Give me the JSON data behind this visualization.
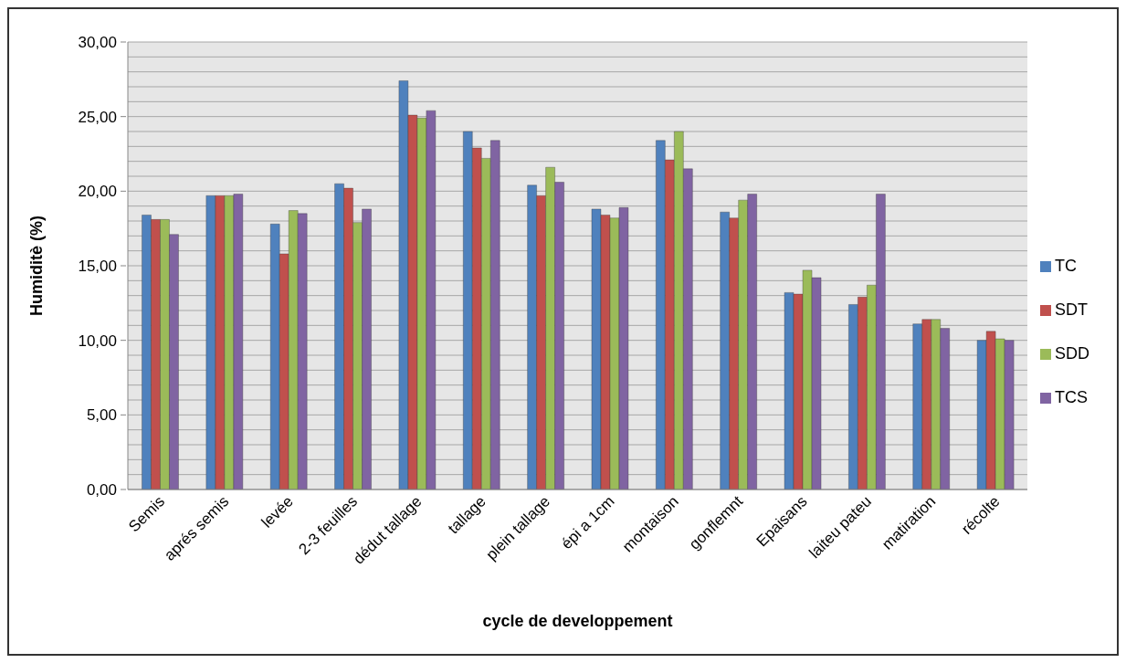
{
  "chart_data": {
    "type": "bar",
    "xlabel": "cycle de developpement",
    "ylabel": "Humiditè (%)",
    "categories": [
      "Semis",
      "aprés semis",
      "levée",
      "2-3 feuilles",
      "dédut tallage",
      "tallage",
      "plein tallage",
      "épi a 1cm",
      "montaison",
      "gonflemnt",
      "Epaisans",
      "laiteu pateu",
      "matiration",
      "récolte"
    ],
    "series": [
      {
        "name": "TC",
        "color": "#4f81bd",
        "values": [
          18.4,
          19.7,
          17.8,
          20.5,
          27.4,
          24.0,
          20.4,
          18.8,
          23.4,
          18.6,
          13.2,
          12.4,
          11.1,
          10.0
        ]
      },
      {
        "name": "SDT",
        "color": "#c0504d",
        "values": [
          18.1,
          19.7,
          15.8,
          20.2,
          25.1,
          22.9,
          19.7,
          18.4,
          22.1,
          18.2,
          13.1,
          12.9,
          11.4,
          10.6
        ]
      },
      {
        "name": "SDD",
        "color": "#9bbb59",
        "values": [
          18.1,
          19.7,
          18.7,
          17.9,
          24.9,
          22.2,
          21.6,
          18.2,
          24.0,
          19.4,
          14.7,
          13.7,
          11.4,
          10.1
        ]
      },
      {
        "name": "TCS",
        "color": "#8064a2",
        "values": [
          17.1,
          19.8,
          18.5,
          18.8,
          25.4,
          23.4,
          20.6,
          18.9,
          21.5,
          19.8,
          14.2,
          19.8,
          10.8,
          10.0
        ]
      }
    ],
    "ylim": [
      0,
      30
    ],
    "yticks": [
      {
        "value": 0,
        "label": "0,00"
      },
      {
        "value": 1,
        "label": null
      },
      {
        "value": 2,
        "label": null
      },
      {
        "value": 3,
        "label": null
      },
      {
        "value": 4,
        "label": null
      },
      {
        "value": 5,
        "label": "5,00"
      },
      {
        "value": 6,
        "label": null
      },
      {
        "value": 7,
        "label": null
      },
      {
        "value": 8,
        "label": null
      },
      {
        "value": 9,
        "label": null
      },
      {
        "value": 10,
        "label": "10,00"
      },
      {
        "value": 11,
        "label": null
      },
      {
        "value": 12,
        "label": null
      },
      {
        "value": 13,
        "label": null
      },
      {
        "value": 14,
        "label": null
      },
      {
        "value": 15,
        "label": "15,00"
      },
      {
        "value": 16,
        "label": null
      },
      {
        "value": 17,
        "label": null
      },
      {
        "value": 18,
        "label": null
      },
      {
        "value": 19,
        "label": null
      },
      {
        "value": 20,
        "label": "20,00"
      },
      {
        "value": 21,
        "label": null
      },
      {
        "value": 22,
        "label": null
      },
      {
        "value": 23,
        "label": null
      },
      {
        "value": 24,
        "label": null
      },
      {
        "value": 25,
        "label": "25,00"
      },
      {
        "value": 26,
        "label": null
      },
      {
        "value": 27,
        "label": null
      },
      {
        "value": 28,
        "label": null
      },
      {
        "value": 29,
        "label": null
      },
      {
        "value": 30,
        "label": "30,00"
      }
    ],
    "grid": "y",
    "legend": "right"
  }
}
